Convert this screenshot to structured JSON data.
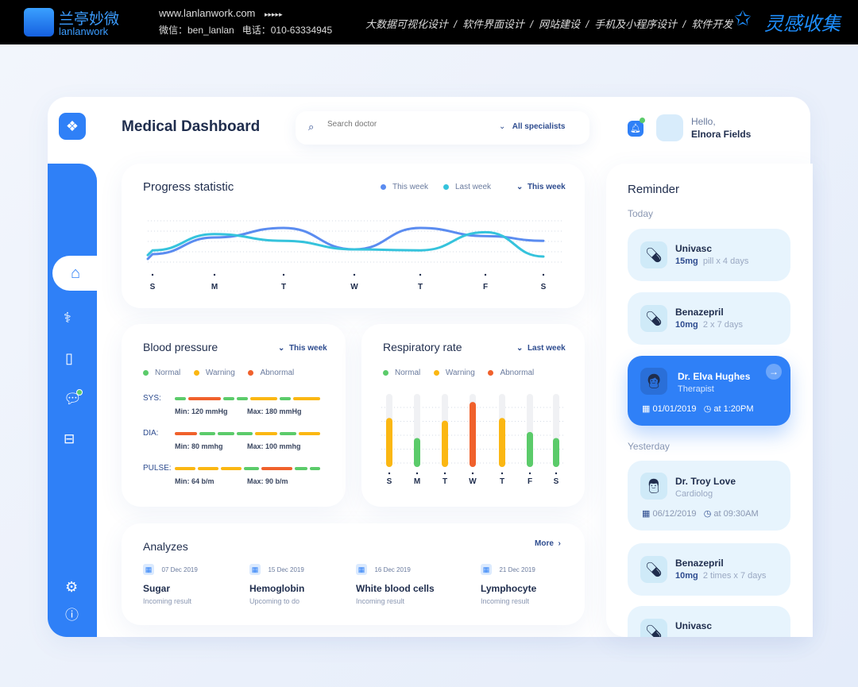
{
  "banner": {
    "brand_cn": "兰亭妙微",
    "brand_en": "lanlanwork",
    "url": "www.lanlanwork.com",
    "arrows": "▸▸▸▸▸",
    "wechat": "微信：ben_lanlan",
    "phone": "电话：010-63334945",
    "services": "大数据可视化设计  /  软件界面设计  /  网站建设  /  手机及小程序设计  /  软件开发",
    "right_brand": "灵感收集"
  },
  "header": {
    "title": "Medical Dashboard",
    "search_placeholder": "Search doctor",
    "filter": "All specialists",
    "greeting": "Hello,",
    "user": "Elnora Fields"
  },
  "colors": {
    "primary": "#2f80f7",
    "normal": "#5bcb6a",
    "warning": "#fbb712",
    "abnormal": "#f0612c",
    "this_week": "#5b8cf0",
    "last_week": "#35c3dc"
  },
  "progress": {
    "title": "Progress statistic",
    "legend": [
      "This week",
      "Last week"
    ],
    "period": "This week",
    "chart_data": {
      "type": "line",
      "categories": [
        "S",
        "M",
        "T",
        "W",
        "T",
        "F",
        "S"
      ],
      "series": [
        {
          "name": "This week",
          "values": [
            20,
            55,
            75,
            30,
            75,
            58,
            48
          ]
        },
        {
          "name": "Last week",
          "values": [
            28,
            62,
            48,
            30,
            28,
            66,
            15
          ]
        }
      ],
      "grid": true
    }
  },
  "blood": {
    "title": "Blood pressure",
    "period": "This week",
    "legend": [
      "Normal",
      "Warning",
      "Abnormal"
    ],
    "rows": [
      {
        "label": "SYS:",
        "min": "Min: 120 mmHg",
        "max": "Max: 180 mmHg",
        "segments": [
          [
            "n",
            1
          ],
          [
            "a",
            3
          ],
          [
            "n",
            1
          ],
          [
            "n",
            1
          ],
          [
            "w",
            2.5
          ],
          [
            "n",
            1
          ],
          [
            "w",
            2.5
          ]
        ]
      },
      {
        "label": "DIA:",
        "min": "Min: 80 mmhg",
        "max": "Max: 100 mmhg",
        "segments": [
          [
            "a",
            2
          ],
          [
            "n",
            1.5
          ],
          [
            "n",
            1.5
          ],
          [
            "n",
            1.5
          ],
          [
            "w",
            2
          ],
          [
            "n",
            1.5
          ],
          [
            "w",
            2
          ]
        ]
      },
      {
        "label": "PULSE:",
        "min": "Min: 64 b/m",
        "max": "Max: 90 b/m",
        "segments": [
          [
            "w",
            2
          ],
          [
            "w",
            2
          ],
          [
            "w",
            2
          ],
          [
            "n",
            1.5
          ],
          [
            "a",
            3
          ],
          [
            "n",
            1.2
          ],
          [
            "n",
            1
          ]
        ]
      }
    ]
  },
  "resp": {
    "title": "Respiratory rate",
    "period": "Last week",
    "legend": [
      "Normal",
      "Warning",
      "Abnormal"
    ],
    "chart_data": {
      "type": "bar",
      "categories": [
        "S",
        "M",
        "T",
        "W",
        "T",
        "F",
        "S"
      ],
      "values": [
        0.64,
        0.34,
        0.6,
        0.88,
        0.64,
        0.43,
        0.34
      ],
      "status": [
        "w",
        "n",
        "w",
        "a",
        "w",
        "n",
        "n"
      ]
    }
  },
  "analyzes": {
    "title": "Analyzes",
    "more": "More",
    "items": [
      {
        "date": "07 Dec 2019",
        "name": "Sugar",
        "status": "Incoming result"
      },
      {
        "date": "15 Dec 2019",
        "name": "Hemoglobin",
        "status": "Upcoming to do"
      },
      {
        "date": "16 Dec 2019",
        "name": "White blood cells",
        "status": "Incoming result"
      },
      {
        "date": "21 Dec 2019",
        "name": "Lymphocyte",
        "status": "Incoming result"
      }
    ]
  },
  "reminder": {
    "title": "Reminder",
    "today": "Today",
    "yesterday": "Yesterday",
    "items": [
      {
        "name": "Univasc",
        "dose": "15mg",
        "detail": "pill x 4 days"
      },
      {
        "name": "Benazepril",
        "dose": "10mg",
        "detail": "2 x 7 days"
      },
      {
        "name": "Dr. Elva Hughes",
        "role": "Therapist",
        "date": "01/01/2019",
        "time": "at 1:20PM"
      },
      {
        "name": "Dr. Troy Love",
        "role": "Cardiolog",
        "date": "06/12/2019",
        "time": "at 09:30AM"
      },
      {
        "name": "Benazepril",
        "dose": "10mg",
        "detail": "2 times  x 7 days"
      },
      {
        "name": "Univasc"
      }
    ]
  }
}
